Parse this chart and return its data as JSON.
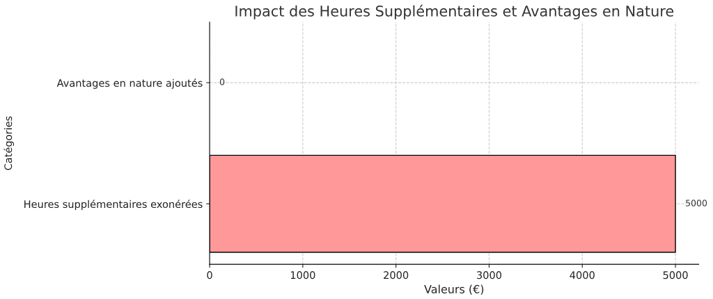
{
  "chart_data": {
    "type": "bar",
    "orientation": "horizontal",
    "title": "Impact des Heures Supplémentaires et Avantages en Nature",
    "xlabel": "Valeurs (€)",
    "ylabel": "Catégories",
    "categories": [
      "Avantages en nature ajoutés",
      "Heures supplémentaires exonérées"
    ],
    "values": [
      0,
      5000
    ],
    "color": "#ff9999",
    "xlim": [
      0,
      5250
    ],
    "xticks": [
      0,
      1000,
      2000,
      3000,
      4000,
      5000
    ],
    "grid": true,
    "line_style": "dashed",
    "data_labels": true
  }
}
